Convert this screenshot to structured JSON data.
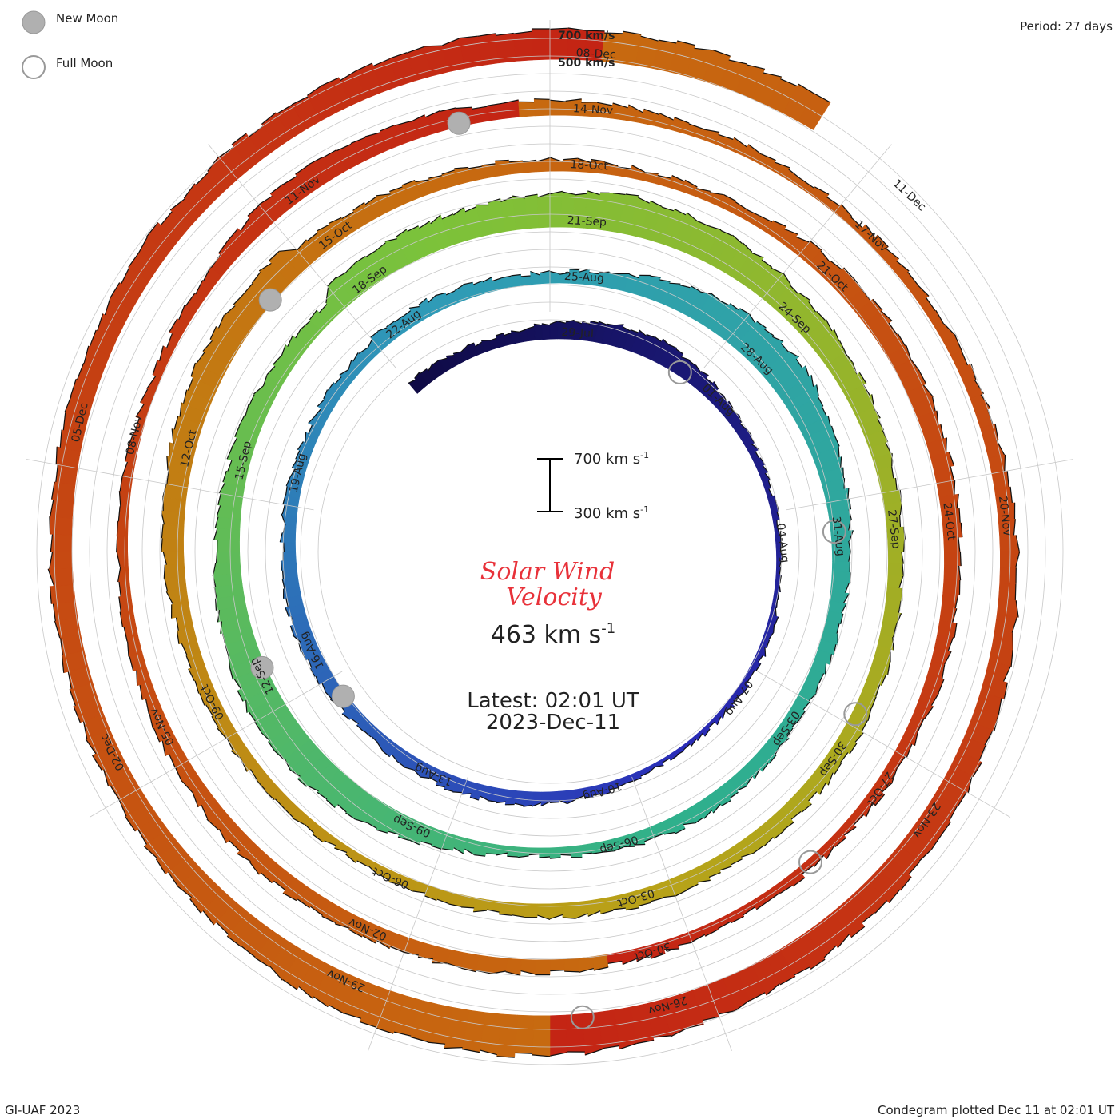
{
  "legend": {
    "new_moon_label": "New Moon",
    "full_moon_label": "Full Moon"
  },
  "period_label": "Period: 27 days",
  "scale_labels": {
    "upper": "700 km/s",
    "lower": "500 km/s"
  },
  "scale_bar": {
    "top_label": "700 km s",
    "bottom_label": "300 km s",
    "exponent": "-1"
  },
  "title": {
    "line1": "Solar Wind",
    "line2": "Velocity"
  },
  "current_value": {
    "text": "463 km s",
    "exponent": "-1"
  },
  "latest": {
    "line1": "Latest: 02:01 UT",
    "line2": "2023-Dec-11"
  },
  "footer": {
    "left": "GI-UAF 2023",
    "right": "Condegram plotted Dec 11 at 02:01 UT"
  },
  "colors": {
    "text_red": "#e8323a",
    "ring_colors": [
      "#0f0a45",
      "#2a2cb8",
      "#2f9ab8",
      "#2fb08c",
      "#7cc23a",
      "#b8a218",
      "#c76a10",
      "#c42414"
    ]
  },
  "chart_data": {
    "type": "condegram",
    "title": "Solar Wind Velocity",
    "unit": "km/s",
    "period_days": 27,
    "start_date": "29-Jul",
    "end_date": "11-Dec",
    "rings": [
      {
        "name": "rotation-1",
        "labels": [
          "29-Jul",
          "01-Aug",
          "04-Aug",
          "07-Aug",
          "10-Aug",
          "13-Aug",
          "16-Aug",
          "19-Aug",
          "22-Aug"
        ],
        "velocity": [
          400,
          390,
          380,
          420,
          460,
          480,
          430,
          380,
          360,
          340,
          330,
          350,
          360,
          340,
          330,
          350,
          380,
          400,
          410,
          400,
          390,
          420,
          430,
          410,
          400,
          395,
          400
        ]
      },
      {
        "name": "rotation-2",
        "labels": [
          "25-Aug",
          "28-Aug",
          "31-Aug",
          "03-Sep",
          "06-Sep",
          "09-Sep",
          "12-Sep",
          "15-Sep",
          "18-Sep"
        ],
        "velocity": [
          430,
          420,
          400,
          380,
          420,
          500,
          560,
          600,
          520,
          470,
          440,
          420,
          400,
          410,
          420,
          400,
          380,
          360,
          420,
          500,
          560,
          580,
          540,
          500,
          470,
          450,
          440
        ]
      },
      {
        "name": "rotation-3",
        "labels": [
          "21-Sep",
          "24-Sep",
          "27-Sep",
          "30-Sep",
          "03-Oct",
          "06-Oct",
          "09-Oct",
          "12-Oct",
          "15-Oct"
        ],
        "velocity": [
          520,
          530,
          540,
          560,
          600,
          580,
          540,
          500,
          460,
          430,
          410,
          420,
          440,
          430,
          420,
          420,
          410,
          400,
          380,
          360,
          380,
          400,
          420,
          450,
          480,
          520,
          530
        ]
      },
      {
        "name": "rotation-4",
        "labels": [
          "18-Oct",
          "21-Oct",
          "24-Oct",
          "27-Oct",
          "30-Oct",
          "02-Nov",
          "05-Nov",
          "08-Nov",
          "11-Nov"
        ],
        "velocity": [
          460,
          440,
          410,
          390,
          380,
          380,
          430,
          470,
          460,
          440,
          420,
          420,
          400,
          380,
          370,
          380,
          390,
          410,
          420,
          430,
          440,
          420,
          400,
          380,
          370,
          360,
          400
        ]
      },
      {
        "name": "rotation-5",
        "labels": [
          "14-Nov",
          "17-Nov",
          "20-Nov",
          "23-Nov",
          "26-Nov",
          "29-Nov",
          "02-Dec",
          "05-Dec"
        ],
        "velocity": [
          480,
          470,
          440,
          420,
          400,
          380,
          370,
          380,
          400,
          420,
          440,
          470,
          500,
          520,
          540,
          560,
          600,
          620,
          600,
          560,
          520,
          500,
          480,
          470,
          470,
          480,
          500
        ]
      },
      {
        "name": "rotation-6",
        "labels": [
          "08-Dec",
          "11-Dec"
        ],
        "velocity": [
          520,
          540,
          560,
          540,
          500
        ]
      }
    ],
    "moon_phases": {
      "new_moon": [
        "16-Aug",
        "15-Sep",
        "14-Oct",
        "13-Nov"
      ],
      "full_moon": [
        "01-Aug",
        "31-Aug",
        "29-Sep",
        "28-Oct",
        "27-Nov"
      ]
    },
    "scale_range": [
      300,
      700
    ]
  }
}
